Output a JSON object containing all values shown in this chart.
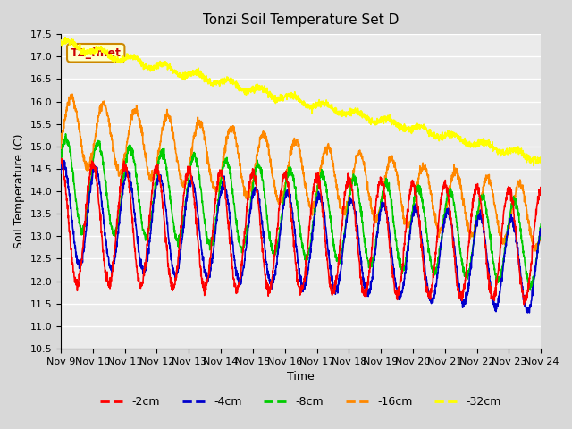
{
  "title": "Tonzi Soil Temperature Set D",
  "xlabel": "Time",
  "ylabel": "Soil Temperature (C)",
  "ylim": [
    10.5,
    17.5
  ],
  "xlim": [
    0,
    15
  ],
  "xtick_labels": [
    "Nov 9",
    "Nov 10",
    "Nov 11",
    "Nov 12",
    "Nov 13",
    "Nov 14",
    "Nov 15",
    "Nov 16",
    "Nov 17",
    "Nov 18",
    "Nov 19",
    "Nov 20",
    "Nov 21",
    "Nov 22",
    "Nov 23",
    "Nov 24"
  ],
  "legend_labels": [
    "-2cm",
    "-4cm",
    "-8cm",
    "-16cm",
    "-32cm"
  ],
  "legend_colors": [
    "#ff0000",
    "#0000cc",
    "#00cc00",
    "#ff8800",
    "#ffff00"
  ],
  "annotation_text": "TZ_fmet",
  "annotation_color": "#cc0000",
  "annotation_bg": "#ffffcc",
  "annotation_border": "#cc8800",
  "series": {
    "n_points": 2160,
    "duration_days": 15
  }
}
